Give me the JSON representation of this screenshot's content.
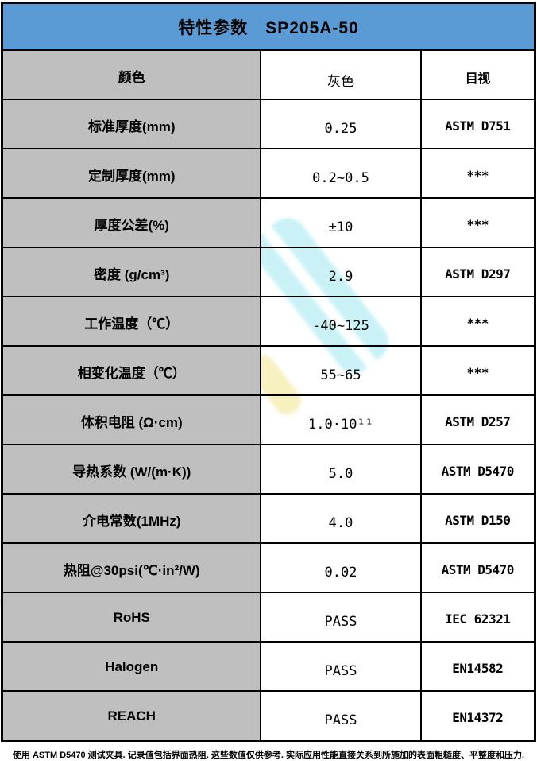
{
  "header": {
    "title": "特性参数　SP205A-50"
  },
  "table": {
    "rows": [
      {
        "label": "颜色",
        "value": "灰色",
        "method": "目视"
      },
      {
        "label": "标准厚度(mm)",
        "value": "0.25",
        "method": "ASTM D751"
      },
      {
        "label": "定制厚度(mm)",
        "value": "0.2~0.5",
        "method": "***"
      },
      {
        "label": "厚度公差(%)",
        "value": "±10",
        "method": "***"
      },
      {
        "label": "密度 (g/cm³)",
        "value": "2.9",
        "method": "ASTM D297"
      },
      {
        "label": "工作温度（℃）",
        "value": "-40~125",
        "method": "***"
      },
      {
        "label": "相变化温度（℃）",
        "value": "55~65",
        "method": "***"
      },
      {
        "label": "体积电阻 (Ω·cm)",
        "value": "1.0·10¹¹",
        "method": "ASTM D257"
      },
      {
        "label": "导热系数 (W/(m·K))",
        "value": "5.0",
        "method": "ASTM D5470"
      },
      {
        "label": "介电常数(1MHz)",
        "value": "4.0",
        "method": "ASTM D150"
      },
      {
        "label": "热阻@30psi(℃·in²/W)",
        "value": "0.02",
        "method": "ASTM D5470"
      },
      {
        "label": "RoHS",
        "value": "PASS",
        "method": "IEC 62321"
      },
      {
        "label": "Halogen",
        "value": "PASS",
        "method": "EN14582"
      },
      {
        "label": "REACH",
        "value": "PASS",
        "method": "EN14372"
      }
    ]
  },
  "footnote": "使用 ASTM D5470 测试夹具. 记录值包括界面热阻. 这些数值仅供参考. 实际应用性能直接关系到所施加的表面粗糙度、平整度和压力.",
  "colors": {
    "header_bg": "#5b9bd5",
    "label_bg": "#bfbfbf",
    "border": "#000000",
    "watermark_cyan": "#9fe8f0",
    "watermark_yellow": "#f2e896",
    "watermark_corner": "#b9d7f3"
  }
}
